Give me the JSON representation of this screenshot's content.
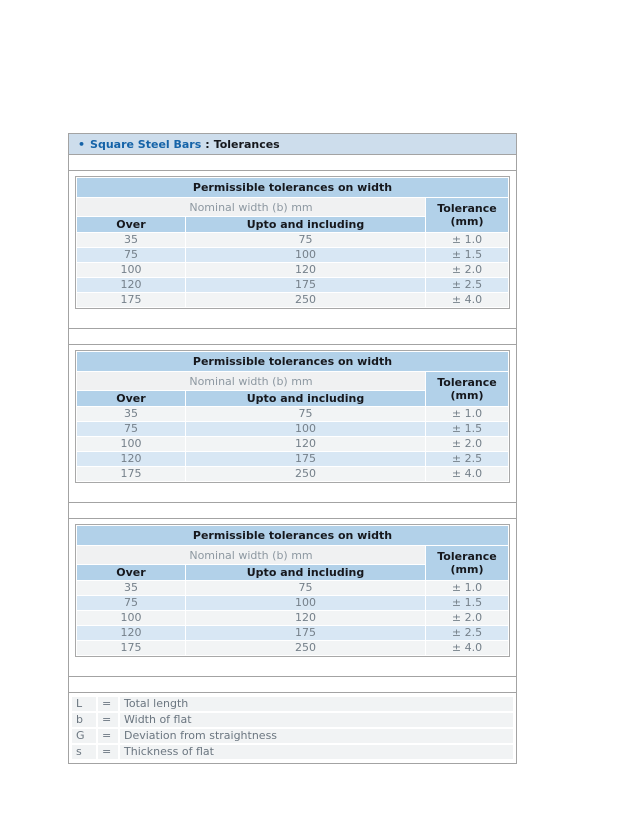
{
  "header": {
    "bullet": "•",
    "link_text": "Square Steel Bars",
    "separator": ":",
    "title": "Tolerances"
  },
  "table": {
    "title": "Permissible tolerances on width",
    "group_header": "Nominal width (b) mm",
    "columns": {
      "over": "Over",
      "upto": "Upto and including",
      "tolerance_line1": "Tolerance",
      "tolerance_line2": "(mm)"
    },
    "rows": [
      {
        "over": "35",
        "upto": "75",
        "tolerance": "± 1.0"
      },
      {
        "over": "75",
        "upto": "100",
        "tolerance": "± 1.5"
      },
      {
        "over": "100",
        "upto": "120",
        "tolerance": "± 2.0"
      },
      {
        "over": "120",
        "upto": "175",
        "tolerance": "± 2.5"
      },
      {
        "over": "175",
        "upto": "250",
        "tolerance": "± 4.0"
      }
    ],
    "instances": 3
  },
  "legend": {
    "items": [
      {
        "symbol": "L",
        "eq": "=",
        "description": "Total length"
      },
      {
        "symbol": "b",
        "eq": "=",
        "description": "Width of flat"
      },
      {
        "symbol": "G",
        "eq": "=",
        "description": "Deviation from straightness"
      },
      {
        "symbol": "s",
        "eq": "=",
        "description": "Thickness of flat"
      }
    ]
  },
  "colors": {
    "title_bar_bg": "#cdddec",
    "table_header_bg": "#b2d1e9",
    "row_blue": "#d8e7f4",
    "row_gray": "#f2f4f5",
    "group_header_bg": "#f0f1f2",
    "legend_row_bg": "#f1f3f4",
    "link_blue": "#1563a8",
    "border": "#a3a3a3"
  }
}
